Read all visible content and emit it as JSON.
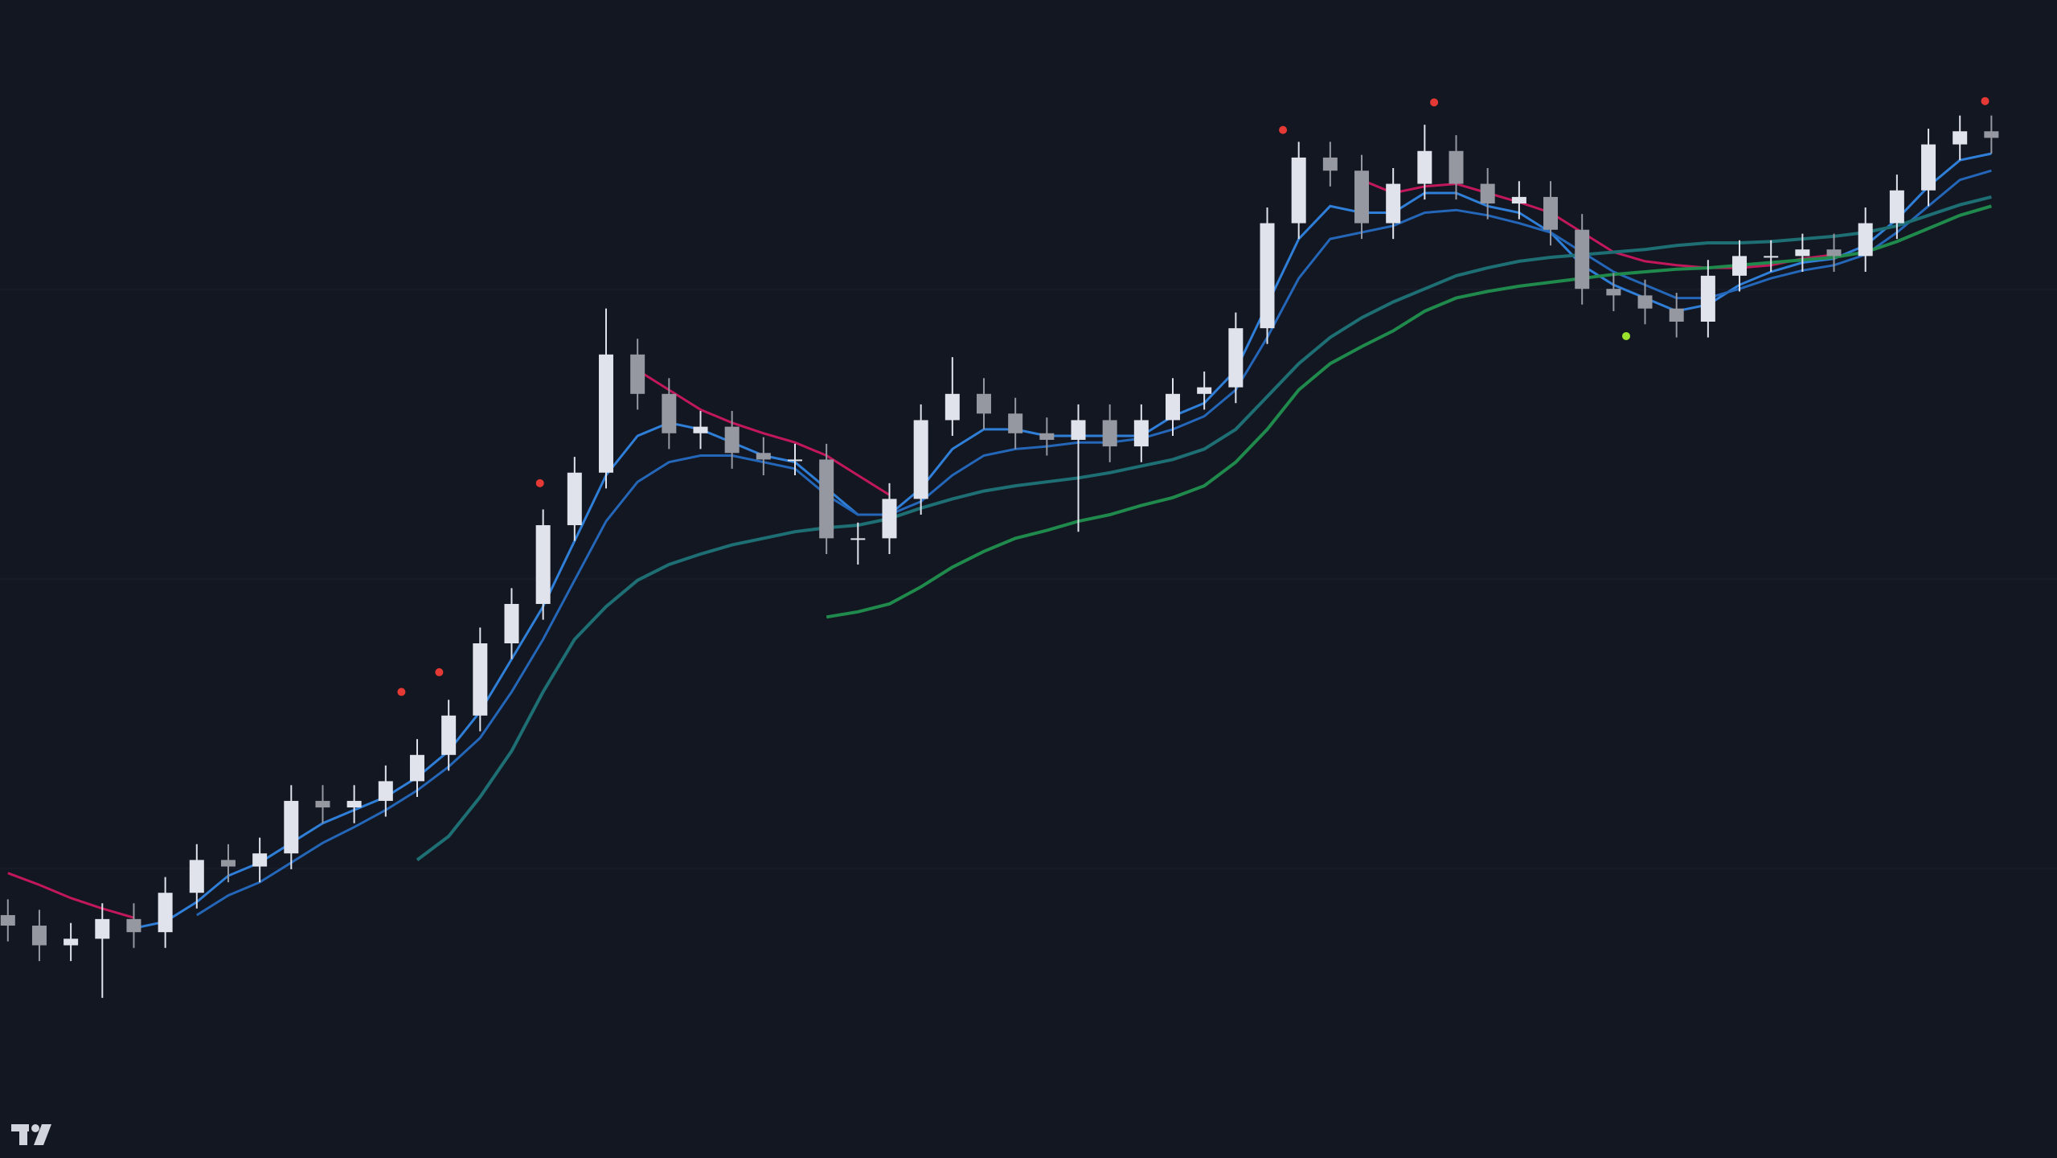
{
  "chart_data": {
    "type": "candlestick",
    "background": "#131722",
    "ylim": [
      0,
      882
    ],
    "up_color": "#e0e3eb",
    "down_color": "#9598a1",
    "open": [
      185,
      177,
      162,
      167,
      182,
      172,
      202,
      227,
      222,
      232,
      272,
      267,
      272,
      287,
      307,
      337,
      392,
      422,
      482,
      522,
      612,
      582,
      552,
      557,
      537,
      532,
      532,
      472,
      472,
      502,
      562,
      582,
      567,
      552,
      547,
      562,
      542,
      562,
      582,
      587,
      632,
      712,
      762,
      752,
      712,
      742,
      767,
      742,
      727,
      732,
      707,
      662,
      657,
      647,
      637,
      672,
      687,
      687,
      692,
      687,
      712,
      737,
      772,
      782
    ],
    "high": [
      197,
      189,
      179,
      194,
      194,
      214,
      239,
      239,
      244,
      284,
      284,
      284,
      299,
      319,
      349,
      404,
      434,
      494,
      534,
      647,
      624,
      594,
      569,
      569,
      549,
      544,
      544,
      484,
      514,
      574,
      610,
      594,
      579,
      564,
      574,
      574,
      574,
      594,
      599,
      644,
      724,
      774,
      774,
      764,
      754,
      787,
      779,
      754,
      744,
      744,
      719,
      674,
      669,
      659,
      684,
      699,
      699,
      704,
      704,
      724,
      749,
      784,
      794,
      794
    ],
    "low": [
      165,
      150,
      150,
      122,
      160,
      160,
      190,
      210,
      210,
      220,
      255,
      255,
      260,
      275,
      295,
      325,
      380,
      410,
      470,
      510,
      570,
      540,
      540,
      525,
      520,
      520,
      460,
      452,
      460,
      490,
      550,
      555,
      540,
      535,
      477,
      530,
      530,
      550,
      570,
      575,
      620,
      700,
      740,
      700,
      700,
      730,
      730,
      715,
      715,
      695,
      650,
      645,
      635,
      625,
      625,
      660,
      675,
      675,
      675,
      675,
      700,
      725,
      760,
      765
    ],
    "close": [
      177,
      162,
      167,
      182,
      172,
      202,
      227,
      222,
      232,
      272,
      267,
      272,
      287,
      307,
      337,
      392,
      422,
      482,
      522,
      612,
      582,
      552,
      557,
      537,
      532,
      532,
      472,
      472,
      502,
      562,
      582,
      567,
      552,
      547,
      562,
      542,
      562,
      582,
      587,
      632,
      712,
      762,
      752,
      712,
      742,
      767,
      742,
      727,
      732,
      707,
      662,
      657,
      647,
      637,
      672,
      687,
      687,
      692,
      687,
      712,
      737,
      772,
      782,
      777
    ],
    "lines": [
      {
        "color": "#2f7fd8",
        "values": [
          null,
          null,
          null,
          null,
          175,
          180,
          195,
          215,
          225,
          240,
          255,
          265,
          275,
          290,
          310,
          340,
          380,
          420,
          470,
          520,
          550,
          560,
          555,
          545,
          535,
          530,
          510,
          490,
          490,
          510,
          540,
          555,
          555,
          550,
          550,
          550,
          550,
          565,
          575,
          600,
          650,
          700,
          725,
          720,
          720,
          735,
          735,
          725,
          720,
          705,
          680,
          665,
          655,
          645,
          650,
          665,
          675,
          682,
          685,
          695,
          715,
          740,
          760,
          765
        ]
      },
      {
        "color": "#2466b8",
        "values": [
          null,
          null,
          null,
          null,
          null,
          null,
          185,
          200,
          210,
          225,
          240,
          252,
          265,
          280,
          298,
          320,
          355,
          395,
          440,
          485,
          515,
          530,
          535,
          535,
          530,
          525,
          505,
          490,
          490,
          500,
          520,
          535,
          540,
          542,
          545,
          545,
          548,
          555,
          565,
          585,
          625,
          670,
          700,
          705,
          710,
          720,
          722,
          718,
          712,
          705,
          690,
          675,
          665,
          655,
          655,
          662,
          670,
          676,
          680,
          688,
          705,
          725,
          745,
          752
        ]
      },
      {
        "color": "#c2185b",
        "values": [
          217,
          208,
          198,
          190,
          183,
          null,
          null,
          null,
          null,
          null,
          null,
          null,
          null,
          null,
          null,
          null,
          null,
          null,
          null,
          null,
          600,
          585,
          570,
          560,
          552,
          545,
          535,
          520,
          505,
          null,
          null,
          null,
          null,
          null,
          null,
          null,
          null,
          null,
          null,
          null,
          null,
          null,
          null,
          745,
          735,
          740,
          742,
          735,
          728,
          720,
          705,
          690,
          683,
          680,
          678,
          678,
          680,
          685,
          688,
          null,
          null,
          null,
          null,
          null
        ]
      },
      {
        "color": "#1e6f74",
        "values": [
          null,
          null,
          null,
          null,
          null,
          null,
          null,
          null,
          null,
          null,
          null,
          null,
          null,
          227,
          245,
          275,
          310,
          355,
          395,
          420,
          440,
          452,
          460,
          467,
          472,
          477,
          480,
          482,
          487,
          495,
          502,
          508,
          512,
          515,
          518,
          522,
          527,
          532,
          540,
          555,
          580,
          605,
          625,
          640,
          652,
          662,
          672,
          678,
          683,
          686,
          688,
          690,
          692,
          695,
          697,
          697,
          698,
          700,
          702,
          705,
          710,
          718,
          726,
          732
        ]
      },
      {
        "color": "#1f8a4c",
        "values": [
          null,
          null,
          null,
          null,
          null,
          null,
          null,
          null,
          null,
          null,
          null,
          null,
          null,
          null,
          null,
          null,
          null,
          null,
          null,
          null,
          null,
          null,
          null,
          null,
          null,
          null,
          412,
          416,
          422,
          435,
          450,
          462,
          472,
          478,
          485,
          490,
          497,
          503,
          512,
          530,
          555,
          585,
          605,
          618,
          630,
          645,
          655,
          660,
          664,
          667,
          670,
          673,
          675,
          677,
          678,
          680,
          682,
          684,
          686,
          690,
          698,
          708,
          718,
          725
        ]
      }
    ],
    "markers": {
      "x": [
        12.5,
        13.7,
        16.9,
        40.5,
        45.3,
        62.8,
        51.4
      ],
      "values": [
        355,
        370,
        514,
        783,
        804,
        805,
        626
      ],
      "colors": [
        "#e53935",
        "#e53935",
        "#e53935",
        "#e53935",
        "#e53935",
        "#e53935",
        "#9be22d"
      ]
    }
  }
}
